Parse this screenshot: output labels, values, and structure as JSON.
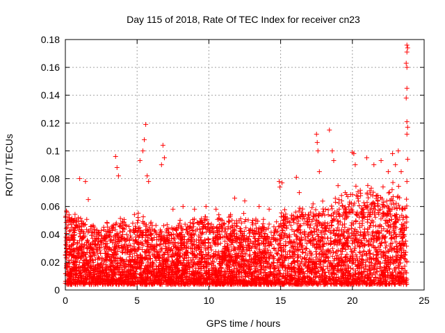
{
  "chart_data": {
    "type": "scatter",
    "title": "Day 115 of 2018, Rate Of TEC Index for receiver cn23",
    "xlabel": "GPS time / hours",
    "ylabel": "ROTI / TECUs",
    "xlim": [
      0,
      25
    ],
    "ylim": [
      0,
      0.18
    ],
    "x_ticks": [
      "0",
      "5",
      "10",
      "15",
      "20",
      "25"
    ],
    "y_ticks": [
      "0",
      "0.02",
      "0.04",
      "0.06",
      "0.08",
      "0.1",
      "0.12",
      "0.14",
      "0.16",
      "0.18"
    ],
    "x_tick_values": [
      0,
      5,
      10,
      15,
      20,
      25
    ],
    "y_tick_values": [
      0,
      0.02,
      0.04,
      0.06,
      0.08,
      0.1,
      0.12,
      0.14,
      0.16,
      0.18
    ],
    "grid": true,
    "marker": "+",
    "color": "#ff0000",
    "envelope": {
      "description_hours": [
        0,
        1,
        2,
        3,
        4,
        5,
        6,
        7,
        8,
        9,
        10,
        11,
        12,
        13,
        14,
        15,
        16,
        17,
        18,
        19,
        20,
        21,
        22,
        23,
        23.8
      ],
      "typical_max": [
        0.055,
        0.05,
        0.042,
        0.045,
        0.048,
        0.05,
        0.045,
        0.042,
        0.045,
        0.048,
        0.05,
        0.05,
        0.05,
        0.048,
        0.048,
        0.05,
        0.055,
        0.058,
        0.06,
        0.062,
        0.065,
        0.068,
        0.07,
        0.068,
        0.06
      ]
    },
    "series": [
      {
        "name": "ROTI",
        "points": [
          [
            0.1,
            0.056
          ],
          [
            0.3,
            0.05
          ],
          [
            1.0,
            0.08
          ],
          [
            1.4,
            0.078
          ],
          [
            1.6,
            0.065
          ],
          [
            3.5,
            0.096
          ],
          [
            3.6,
            0.088
          ],
          [
            3.7,
            0.082
          ],
          [
            5.2,
            0.093
          ],
          [
            5.4,
            0.1
          ],
          [
            5.5,
            0.108
          ],
          [
            5.6,
            0.119
          ],
          [
            5.7,
            0.082
          ],
          [
            5.8,
            0.078
          ],
          [
            6.8,
            0.104
          ],
          [
            6.9,
            0.095
          ],
          [
            6.7,
            0.09
          ],
          [
            7.5,
            0.058
          ],
          [
            8.2,
            0.06
          ],
          [
            9.0,
            0.058
          ],
          [
            9.8,
            0.06
          ],
          [
            10.5,
            0.058
          ],
          [
            11.8,
            0.066
          ],
          [
            12.5,
            0.064
          ],
          [
            13.5,
            0.06
          ],
          [
            14.2,
            0.058
          ],
          [
            14.9,
            0.078
          ],
          [
            15.1,
            0.077
          ],
          [
            14.95,
            0.074
          ],
          [
            16.1,
            0.081
          ],
          [
            16.3,
            0.07
          ],
          [
            17.5,
            0.112
          ],
          [
            17.55,
            0.106
          ],
          [
            17.6,
            0.1
          ],
          [
            17.7,
            0.085
          ],
          [
            18.4,
            0.115
          ],
          [
            18.6,
            0.1
          ],
          [
            18.7,
            0.093
          ],
          [
            19.0,
            0.075
          ],
          [
            19.5,
            0.07
          ],
          [
            20.0,
            0.099
          ],
          [
            20.1,
            0.098
          ],
          [
            20.2,
            0.09
          ],
          [
            21.0,
            0.095
          ],
          [
            21.5,
            0.09
          ],
          [
            22.0,
            0.093
          ],
          [
            22.5,
            0.085
          ],
          [
            22.8,
            0.098
          ],
          [
            23.0,
            0.09
          ],
          [
            23.2,
            0.1
          ],
          [
            23.4,
            0.085
          ],
          [
            23.8,
            0.176
          ],
          [
            23.85,
            0.174
          ],
          [
            23.8,
            0.171
          ],
          [
            23.75,
            0.163
          ],
          [
            23.8,
            0.16
          ],
          [
            23.8,
            0.145
          ],
          [
            23.75,
            0.138
          ],
          [
            23.8,
            0.121
          ],
          [
            23.85,
            0.117
          ],
          [
            23.8,
            0.112
          ],
          [
            23.85,
            0.094
          ],
          [
            23.8,
            0.078
          ]
        ]
      }
    ]
  }
}
